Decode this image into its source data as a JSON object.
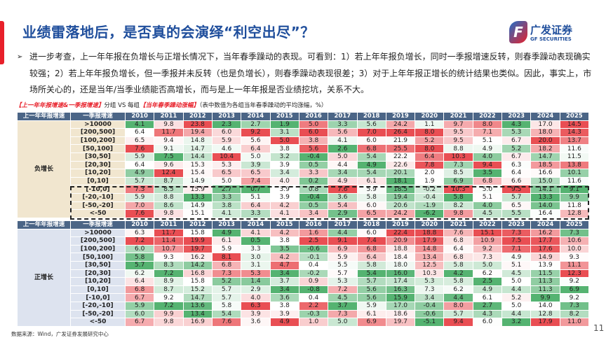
{
  "header": {
    "title": "业绩雷落地后，是否真的会演绎“利空出尽”？",
    "logo_cn": "广发证券",
    "logo_en": "GF SECURITIES",
    "logo_mark": "F"
  },
  "bullet": "进一步考查，上一年年报在负增长与正增长情况下，当年春季躁动的表现。可看到：1）若上年年报负增长，同时一季报增速反转，则春季躁动表现确实较强；2）若上年年报负增长，但一季报并未反转（也是负增长），则春季躁动表现很差；3）对于上年年报正增长的统计结果也类似。因此，事实上，市场所关心的，还是当年/当季业绩能否高增长，而与是上一年年报是否业绩挖坑，关系不大。",
  "caption": {
    "part1": "【上一年年报增速&一季报增速】",
    "part2": "分组 VS 每组",
    "part3": "【当年春季躁动涨幅】",
    "part4": "（表中数值为各组当年春季躁动的平均涨幅，%）"
  },
  "colors": {
    "low": "#4caf6a",
    "high": "#e8454a",
    "header": "#4b6586",
    "title": "#1f4e9c"
  },
  "table": {
    "col1": "上一年年报增速",
    "col2": "一季报增速",
    "years": [
      "2010",
      "2011",
      "2012",
      "2013",
      "2014",
      "2015",
      "2016",
      "2017",
      "2018",
      "2019",
      "2020",
      "2021",
      "2022",
      "2023",
      "2024",
      "2025"
    ],
    "blocks": [
      {
        "group": "负增长",
        "rows": [
          {
            "label": ">10000",
            "values": [
              4.1,
              9.8,
              23.8,
              2.3,
              2.7,
              1.9,
              5.0,
              3.3,
              5.6,
              24.2,
              1.1,
              9.7,
              8.0,
              4.3,
              17.0,
              14.5
            ]
          },
          {
            "label": "[200,500]",
            "values": [
              6.4,
              11.7,
              19.4,
              6.0,
              9.2,
              3.1,
              6.0,
              5.6,
              7.0,
              26.4,
              8.0,
              9.5,
              7.1,
              5.3,
              18.0,
              14.3
            ]
          },
          {
            "label": "[100,200]",
            "values": [
              6.5,
              9.4,
              14.8,
              5.9,
              5.6,
              5.0,
              3.8,
              4.1,
              6.0,
              21.9,
              5.2,
              9.5,
              5.1,
              6.7,
              20.0,
              13.7
            ]
          },
          {
            "label": "[50,100]",
            "values": [
              7.6,
              9.1,
              14.7,
              4.6,
              6.4,
              3.8,
              5.6,
              2.6,
              6.8,
              25.5,
              8.0,
              8.8,
              4.9,
              5.2,
              18.2,
              11.6
            ]
          },
          {
            "label": "[30,50]",
            "values": [
              5.9,
              7.5,
              14.4,
              10.4,
              5.0,
              3.2,
              -0.4,
              5.0,
              5.4,
              22.2,
              6.4,
              10.3,
              4.0,
              6.7,
              14.7,
              11.5
            ]
          },
          {
            "label": "[20,30]",
            "values": [
              6.4,
              9.6,
              15.3,
              5.3,
              3.9,
              3.9,
              0.5,
              4.4,
              4.9,
              22.6,
              7.8,
              7.3,
              9.4,
              6.3,
              18.5,
              13.8
            ]
          },
          {
            "label": "[10,20]",
            "values": [
              4.9,
              12.4,
              15.4,
              6.5,
              6.5,
              3.4,
              3.3,
              3.4,
              5.4,
              20.1,
              2.0,
              8.5,
              3.5,
              6.4,
              16.6,
              10.1
            ]
          },
          {
            "label": "[0,10]",
            "values": [
              5.7,
              8.7,
              14.9,
              5.0,
              7.4,
              4.0,
              0.2,
              4.9,
              6.1,
              18.1,
              1.9,
              6.9,
              6.8,
              6.6,
              15.0,
              11.6
            ]
          },
          {
            "label": "[-10,0]",
            "values": [
              7.3,
              8.5,
              15.9,
              2.7,
              0.7,
              3.9,
              0.8,
              7.6,
              5.9,
              18.5,
              -0.2,
              10.3,
              5.0,
              9.5,
              14.1,
              9.1
            ]
          },
          {
            "label": "[-20,-10]",
            "values": [
              5.9,
              8.8,
              13.3,
              3.3,
              5.1,
              3.9,
              -0.4,
              3.6,
              5.8,
              19.4,
              -0.4,
              5.8,
              5.1,
              5.7,
              13.3,
              9.9
            ]
          },
          {
            "label": "[-50,-20]",
            "values": [
              7.0,
              8.6,
              14.9,
              3.8,
              6.4,
              4.2,
              0.5,
              5.4,
              6.0,
              20.6,
              -1.9,
              8.2,
              4.0,
              6.5,
              14.0,
              11.8
            ]
          },
          {
            "label": "<-50",
            "values": [
              7.6,
              9.8,
              15.1,
              4.1,
              3.3,
              4.1,
              3.4,
              2.9,
              6.5,
              24.2,
              -6.2,
              9.8,
              4.5,
              5.5,
              16.4,
              12.8
            ]
          }
        ]
      },
      {
        "group": "正增长",
        "rows": [
          {
            "label": ">10000",
            "values": [
              6.3,
              11.7,
              15.8,
              4.9,
              4.1,
              4.2,
              1.6,
              4.4,
              6.0,
              22.4,
              18.8,
              7.6,
              15.1,
              7.3,
              16.2,
              7.3
            ]
          },
          {
            "label": "[200,500]",
            "values": [
              7.2,
              11.4,
              19.9,
              6.1,
              0.5,
              3.8,
              2.5,
              9.1,
              7.4,
              20.9,
              17.9,
              6.8,
              10.9,
              7.5,
              17.7,
              10.6
            ]
          },
          {
            "label": "[100,200]",
            "values": [
              6.0,
              10.7,
              19.7,
              5.9,
              3.3,
              3.5,
              -0.6,
              6.9,
              6.8,
              18.8,
              14.8,
              6.4,
              9.2,
              7.1,
              17.6,
              10.0
            ]
          },
          {
            "label": "[50,100]",
            "values": [
              5.8,
              9.3,
              16.2,
              8.1,
              3.0,
              4.2,
              -0.1,
              5.9,
              6.4,
              18.4,
              13.4,
              6.8,
              7.3,
              4.9,
              14.9,
              9.3
            ]
          },
          {
            "label": "[30,50]",
            "values": [
              5.7,
              8.3,
              14.2,
              6.8,
              3.1,
              4.7,
              0.4,
              5.5,
              5.8,
              18.0,
              12.5,
              5.8,
              5.0,
              5.1,
              13.9,
              11.1
            ]
          },
          {
            "label": "[20,30]",
            "values": [
              6.2,
              7.2,
              16.8,
              7.3,
              5.3,
              3.4,
              -0.2,
              5.7,
              5.4,
              16.0,
              10.3,
              4.2,
              6.2,
              4.5,
              11.5,
              12.3
            ]
          },
          {
            "label": "[10,20]",
            "values": [
              6.4,
              8.9,
              15.8,
              5.2,
              1.4,
              3.7,
              0.9,
              5.3,
              5.7,
              17.4,
              5.3,
              5.8,
              2.5,
              5.0,
              11.3,
              9.2
            ]
          },
          {
            "label": "[0,10]",
            "values": [
              6.8,
              8.7,
              15.2,
              5.7,
              2.9,
              3.4,
              -0.8,
              7.2,
              5.6,
              16.3,
              7.3,
              6.2,
              4.9,
              4.4,
              11.3,
              6.9
            ]
          },
          {
            "label": "[-10,0]",
            "values": [
              6.7,
              9.2,
              14.7,
              5.7,
              4.0,
              3.6,
              0.4,
              4.5,
              5.6,
              15.9,
              3.4,
              4.4,
              6.1,
              5.2,
              9.9,
              9.2
            ]
          },
          {
            "label": "[-20,-10]",
            "values": [
              5.9,
              7.2,
              13.6,
              5.8,
              6.3,
              3.8,
              2.2,
              3.7,
              5.9,
              17.0,
              -0.4,
              8.0,
              2.7,
              5.0,
              14.0,
              7.3
            ]
          },
          {
            "label": "[-50,-20]",
            "values": [
              6.0,
              9.9,
              13.4,
              5.4,
              3.9,
              3.9,
              -0.3,
              7.3,
              6.1,
              18.6,
              -0.6,
              5.7,
              4.3,
              4.4,
              12.8,
              8.2
            ]
          },
          {
            "label": "<-50",
            "values": [
              6.7,
              9.8,
              16.9,
              7.6,
              3.6,
              4.9,
              1.0,
              5.0,
              6.9,
              19.7,
              -5.1,
              9.4,
              6.0,
              3.2,
              17.9,
              11.0
            ]
          }
        ]
      }
    ]
  },
  "footer": {
    "source": "数据来源：Wind，广发证券发展研究中心",
    "page": "11"
  }
}
